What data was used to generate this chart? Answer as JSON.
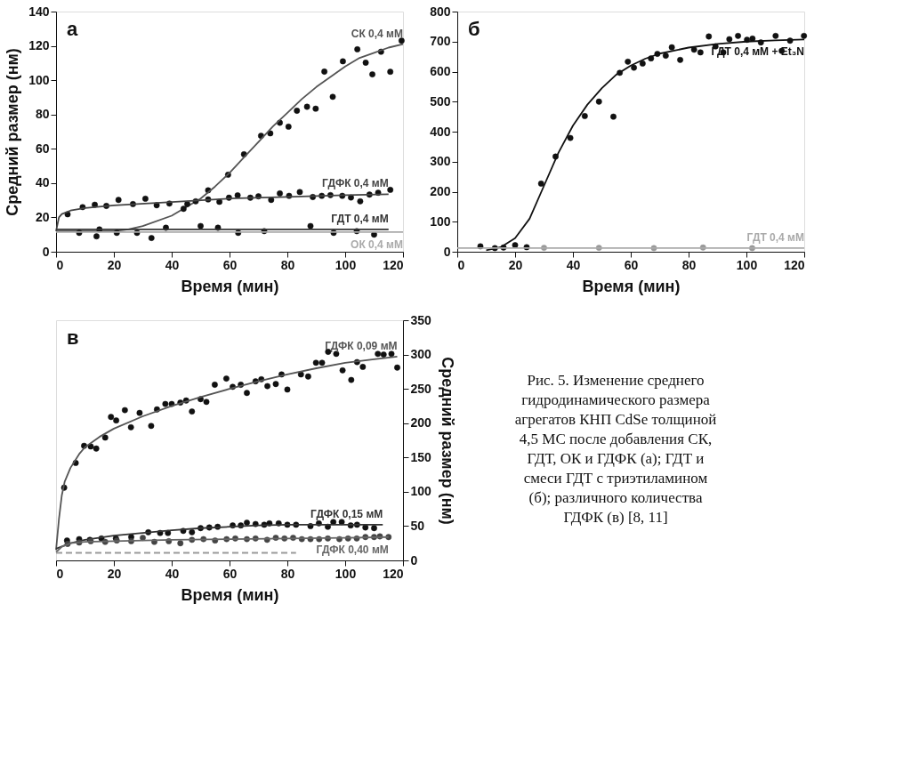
{
  "chart_data": [
    {
      "type": "scatter",
      "xlabel": "Время (мин)",
      "ylabel": "Средний размер (нм)",
      "xlim": [
        0,
        120
      ],
      "ylim": [
        0,
        140
      ],
      "xticks": [
        0,
        20,
        40,
        60,
        80,
        100,
        120
      ],
      "yticks": [
        0,
        20,
        40,
        60,
        80,
        100,
        120,
        140
      ],
      "grid": false,
      "legend": false,
      "annotations": [
        "а"
      ],
      "series": [
        {
          "type": "scatter",
          "marker": "circle",
          "color": "#111111",
          "x": [
            52.6,
            59.5,
            65,
            70.9,
            74.1,
            77.4,
            80.4,
            83.3,
            86.8,
            89.8,
            92.8,
            95.7,
            99.2,
            104.2,
            107.1,
            109.4,
            112.4,
            115.6,
            119.5
          ],
          "values": [
            35.8,
            44.9,
            56.8,
            67.6,
            69,
            75.2,
            72.9,
            82.2,
            84.5,
            83.4,
            105,
            90.3,
            111,
            118,
            110.2,
            103.4,
            116.6,
            104.9,
            123
          ]
        },
        {
          "type": "line",
          "name": "СК 0,4 мМ",
          "color": "#555555",
          "x": [
            0,
            20,
            25,
            30,
            40,
            50,
            55,
            60,
            65,
            70,
            75,
            80,
            85,
            90,
            95,
            100,
            105,
            110,
            115,
            120
          ],
          "values": [
            12,
            12,
            13,
            15,
            21,
            31,
            38,
            46,
            55,
            64,
            73,
            81,
            89,
            96,
            102,
            108,
            113,
            116,
            119,
            121
          ]
        },
        {
          "type": "scatter",
          "marker": "circle",
          "color": "#111111",
          "x": [
            4,
            9.2,
            13.4,
            17.4,
            21.6,
            26.6,
            30.9,
            34.8,
            39.2,
            44.1,
            45.4,
            48.3,
            52.6,
            56.5,
            59.8,
            62.8,
            67.2,
            70,
            74.4,
            77.4,
            80.6,
            84.3,
            88.8,
            91.9,
            94.9,
            99,
            102,
            105.2,
            108.4,
            111.4,
            115.6
          ],
          "values": [
            21.8,
            26,
            27.4,
            26.7,
            30.2,
            27.8,
            30.9,
            27.1,
            28.1,
            25,
            27.8,
            29.4,
            30.5,
            29.1,
            31.5,
            32.9,
            31.5,
            32.3,
            30.2,
            34,
            32.6,
            34.8,
            31.9,
            32.6,
            33,
            32.6,
            31.6,
            29.4,
            33.3,
            34.4,
            36.1
          ]
        },
        {
          "type": "line",
          "name": "ГДФК 0,4 мМ",
          "color": "#444444",
          "x": [
            0,
            1,
            2,
            5,
            10,
            20,
            40,
            60,
            80,
            100,
            115
          ],
          "values": [
            12,
            20,
            22,
            24,
            25.5,
            27,
            29,
            31,
            32,
            33,
            33.5
          ]
        },
        {
          "type": "scatter",
          "marker": "circle",
          "color": "#111111",
          "x": [
            8,
            14,
            15,
            21,
            28,
            33,
            38,
            50,
            56,
            63,
            72,
            88,
            96,
            104,
            110
          ],
          "values": [
            11,
            9,
            13,
            11,
            11,
            8,
            14,
            15,
            14,
            11,
            12,
            15,
            11,
            12,
            10
          ]
        },
        {
          "type": "line",
          "name": "ГДТ 0,4 мМ",
          "color": "#333333",
          "x": [
            0,
            115
          ],
          "values": [
            13,
            13
          ]
        },
        {
          "type": "line",
          "name": "ОК 0,4 мМ",
          "color": "#aaaaaa",
          "x": [
            0,
            120
          ],
          "values": [
            11.5,
            11.5
          ]
        }
      ]
    },
    {
      "type": "scatter",
      "xlabel": "Время (мин)",
      "xlim": [
        0,
        120
      ],
      "ylim": [
        0,
        800
      ],
      "xticks": [
        0,
        20,
        40,
        60,
        80,
        100,
        120
      ],
      "yticks": [
        0,
        100,
        200,
        300,
        400,
        500,
        600,
        700,
        800
      ],
      "grid": false,
      "legend": false,
      "annotations": [
        "б"
      ],
      "series": [
        {
          "type": "scatter",
          "marker": "circle",
          "color": "#111111",
          "x": [
            8,
            13,
            16,
            20,
            24,
            29,
            34,
            39.1,
            44.1,
            49,
            54,
            56.2,
            59,
            61.1,
            64.1,
            67,
            69.2,
            72.1,
            74.2,
            77.1,
            81.9,
            84.1,
            87,
            89.3,
            92,
            94.1,
            97.1,
            100.2,
            102.1,
            105,
            110.1,
            112.2,
            115.1,
            119.9
          ],
          "values": [
            18,
            12,
            14,
            22,
            15,
            227,
            317,
            379,
            452,
            500,
            450,
            596,
            633,
            613,
            627,
            644,
            659,
            653,
            681,
            639,
            673,
            664,
            717,
            684,
            664,
            708,
            719,
            706,
            710,
            697,
            719,
            669,
            703,
            719
          ]
        },
        {
          "type": "line",
          "name": "ГДТ 0,4 мМ + Et₃N",
          "color": "#111111",
          "x": [
            10,
            15,
            20,
            25,
            30,
            35,
            40,
            45,
            50,
            55,
            60,
            65,
            70,
            80,
            90,
            100,
            110,
            120
          ],
          "values": [
            5,
            15,
            45,
            110,
            220,
            330,
            420,
            490,
            545,
            590,
            620,
            643,
            660,
            680,
            692,
            700,
            704,
            707
          ]
        },
        {
          "type": "scatter",
          "marker": "circle",
          "color": "#999999",
          "x": [
            30,
            49,
            68,
            85,
            102
          ],
          "values": [
            13,
            13,
            12,
            14,
            12
          ]
        },
        {
          "type": "line",
          "name": "ГДТ 0,4 мМ",
          "color": "#aaaaaa",
          "x": [
            0,
            120
          ],
          "values": [
            12,
            12
          ]
        }
      ]
    },
    {
      "type": "scatter",
      "xlabel": "Время (мин)",
      "y2label": "Средний размер (нм)",
      "xlim": [
        0,
        120
      ],
      "y2lim": [
        0,
        350
      ],
      "xticks": [
        0,
        20,
        40,
        60,
        80,
        100,
        120
      ],
      "y2ticks": [
        0,
        50,
        100,
        150,
        200,
        250,
        300,
        350
      ],
      "grid": false,
      "legend": false,
      "annotations": [
        "в"
      ],
      "series": [
        {
          "type": "scatter",
          "axis": "y2",
          "marker": "circle",
          "color": "#111111",
          "x": [
            2.8,
            6.8,
            9.7,
            12,
            13.9,
            17,
            19,
            20.8,
            23.8,
            25.9,
            28.9,
            32.9,
            34.9,
            37.8,
            40,
            43,
            45,
            47,
            50,
            52,
            54.9,
            58.9,
            61.1,
            63.9,
            66,
            69,
            71,
            73.1,
            76,
            78,
            80,
            84.7,
            87.2,
            89.9,
            92,
            94.1,
            96.9,
            99.1,
            102.1,
            104.1,
            106.1,
            111.3,
            113.3,
            116,
            118
          ],
          "values": [
            106,
            142,
            167,
            166,
            163,
            179,
            209,
            204,
            219,
            194,
            215,
            196,
            220,
            228,
            228,
            230,
            233,
            217,
            235,
            231,
            256,
            265,
            253,
            256,
            244,
            261,
            264,
            254,
            257,
            271,
            249,
            271,
            268,
            288,
            288,
            304,
            301,
            277,
            263,
            289,
            282,
            301,
            300,
            301,
            281
          ]
        },
        {
          "type": "line",
          "axis": "y2",
          "name": "ГДФК 0,09 мМ",
          "color": "#555555",
          "x": [
            0,
            1,
            2,
            3,
            5,
            8,
            10,
            15,
            20,
            30,
            40,
            50,
            60,
            70,
            80,
            90,
            100,
            110,
            118
          ],
          "values": [
            15,
            60,
            95,
            115,
            135,
            155,
            165,
            180,
            192,
            210,
            225,
            238,
            250,
            261,
            271,
            280,
            288,
            293,
            297
          ]
        },
        {
          "type": "scatter",
          "axis": "y2",
          "marker": "circle",
          "color": "#111111",
          "x": [
            3.8,
            8,
            11.7,
            15.7,
            20.7,
            26,
            31.9,
            36,
            38.7,
            44,
            47,
            50,
            53,
            55.9,
            61.1,
            63.9,
            66,
            69,
            72,
            73.8,
            77,
            80,
            83,
            88,
            90.9,
            94,
            95.9,
            98.8,
            101.9,
            104.1,
            107,
            110
          ],
          "values": [
            29,
            31,
            30,
            32,
            32,
            34,
            41,
            40,
            40,
            43,
            41,
            47,
            48,
            49,
            51,
            51,
            55,
            53,
            52,
            54,
            54,
            52,
            52,
            50,
            54,
            49,
            56,
            56,
            51,
            52,
            48,
            47
          ]
        },
        {
          "type": "line",
          "axis": "y2",
          "name": "ГДФК 0,15 мМ",
          "color": "#333333",
          "x": [
            0,
            5,
            10,
            20,
            30,
            40,
            50,
            60,
            70,
            80,
            90,
            100,
            113
          ],
          "values": [
            17,
            25,
            30,
            36,
            40,
            44,
            47,
            49,
            51,
            52,
            52,
            52,
            52
          ]
        },
        {
          "type": "scatter",
          "axis": "y2",
          "marker": "circle",
          "color": "#444444",
          "x": [
            4,
            8,
            12,
            17,
            21,
            26,
            30,
            34,
            39,
            43,
            47,
            51,
            55,
            59,
            62,
            66,
            69,
            73,
            76,
            79,
            82,
            85,
            88,
            91,
            94,
            98,
            101,
            104,
            107,
            110,
            112,
            115
          ],
          "values": [
            24,
            26,
            28,
            27,
            29,
            28,
            33,
            27,
            28,
            25,
            30,
            31,
            29,
            31,
            32,
            31,
            32,
            30,
            33,
            32,
            33,
            31,
            31,
            31,
            32,
            31,
            32,
            32,
            34,
            34,
            35,
            34
          ]
        },
        {
          "type": "line",
          "axis": "y2",
          "name": "ГДФК 0,40 мМ",
          "color": "#666666",
          "x": [
            0,
            2,
            5,
            10,
            20,
            40,
            60,
            80,
            100,
            115
          ],
          "values": [
            12,
            20,
            25,
            27,
            28,
            30,
            31,
            32,
            33,
            34
          ]
        },
        {
          "type": "line",
          "axis": "y2",
          "line_style": "dashed",
          "color": "#999999",
          "x": [
            0,
            83
          ],
          "values": [
            11,
            11
          ]
        }
      ]
    },
    {
      "type": "other",
      "annotations": [
        "Рис. 5. Изменение среднего гидродинамического размера агрегатов КНП CdSe толщиной 4,5 МС после добавления СК, ГДТ, ОК и ГДФК (а); ГДТ и смеси ГДТ с триэтиламином (б); различного количества ГДФК (в) [8, 11]"
      ]
    }
  ]
}
